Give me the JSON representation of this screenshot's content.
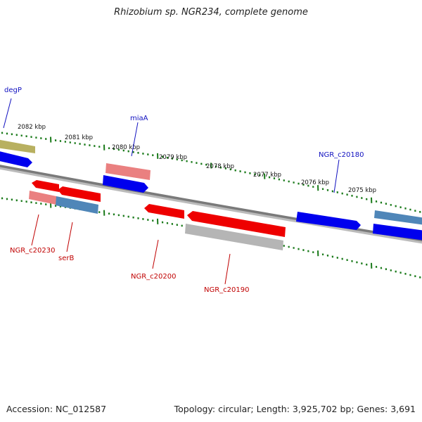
{
  "title": "Rhizobium sp. NGR234, complete genome",
  "footer": {
    "accession": "Accession: NC_012587",
    "stats": "Topology: circular; Length: 3,925,702 bp; Genes: 3,691"
  },
  "colors": {
    "backbone": "#7a7a7a",
    "tick": "#1a7a1a",
    "label_blue": "#1010c0",
    "label_red": "#c00000"
  },
  "kbp_labels": [
    "2082 kbp",
    "2081 kbp",
    "2080 kbp",
    "2079 kbp",
    "2078 kbp",
    "2077 kbp",
    "2076 kbp",
    "2075 kbp"
  ],
  "gene_labels": {
    "degP": "degP",
    "miaA": "miaA",
    "NGR_c20180": "NGR_c20180",
    "NGR_c20230": "NGR_c20230",
    "serB": "serB",
    "NGR_c20200": "NGR_c20200",
    "NGR_c20190": "NGR_c20190"
  },
  "genes": [
    {
      "id": "degP",
      "strand": "+",
      "color": "blue"
    },
    {
      "id": "miaA",
      "strand": "+",
      "color": "blue"
    },
    {
      "id": "NGR_c20180",
      "strand": "+",
      "color": "blue"
    },
    {
      "id": "NGR_c20230",
      "strand": "-",
      "color": "red"
    },
    {
      "id": "serB",
      "strand": "-",
      "color": "red"
    },
    {
      "id": "NGR_c20200",
      "strand": "-",
      "color": "red"
    },
    {
      "id": "NGR_c20190",
      "strand": "-",
      "color": "red"
    }
  ]
}
